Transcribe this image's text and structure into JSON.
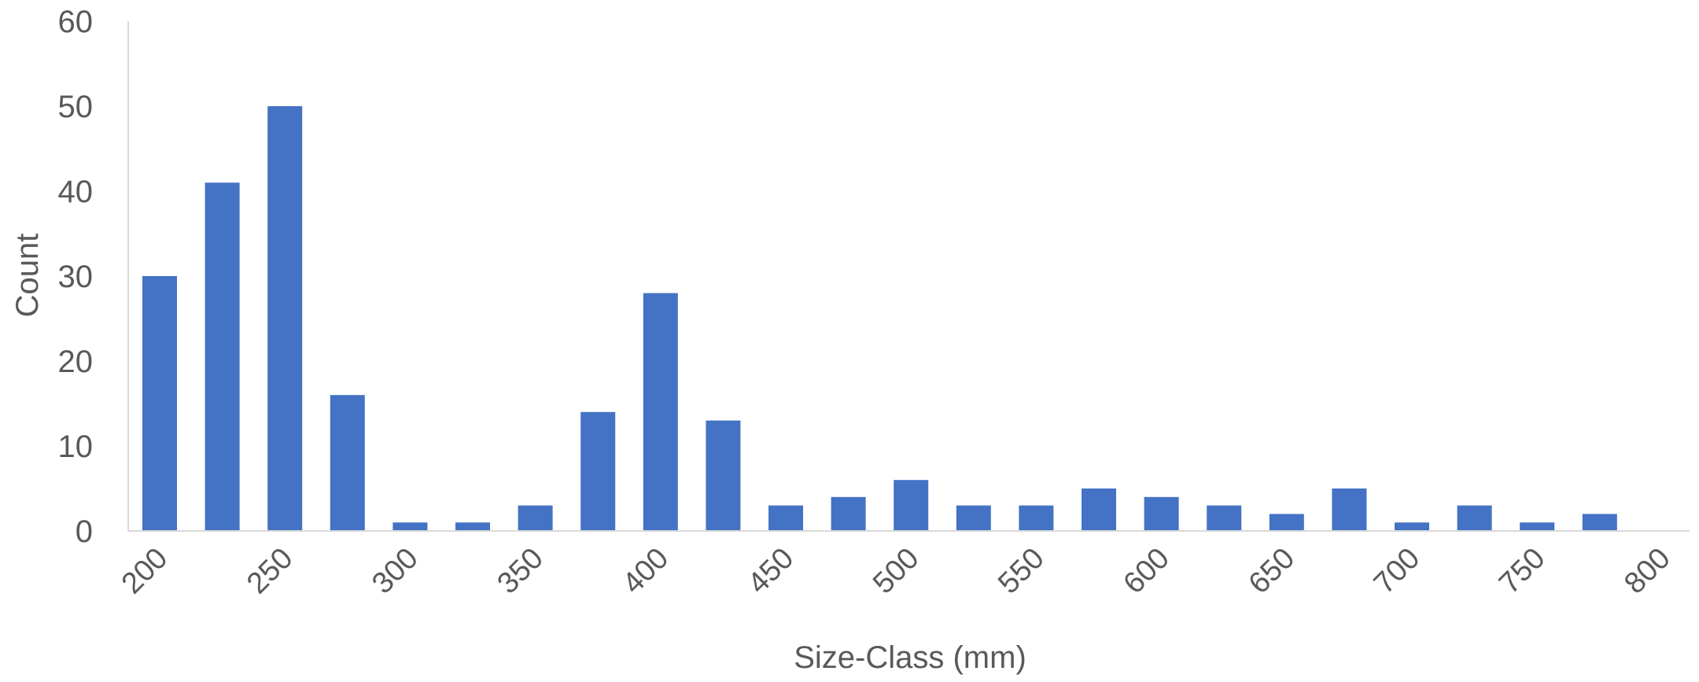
{
  "chart_data": {
    "type": "bar",
    "title": "",
    "xlabel": "Size-Class (mm)",
    "ylabel": "Count",
    "ylim": [
      0,
      60
    ],
    "y_ticks": [
      "0",
      "10",
      "20",
      "30",
      "40",
      "50",
      "60"
    ],
    "x_ticks": [
      "200",
      "250",
      "300",
      "350",
      "400",
      "450",
      "500",
      "550",
      "600",
      "650",
      "700",
      "750",
      "800"
    ],
    "x": [
      200,
      225,
      250,
      275,
      300,
      325,
      350,
      375,
      400,
      425,
      450,
      475,
      500,
      525,
      550,
      575,
      600,
      625,
      650,
      675,
      700,
      725,
      750,
      775
    ],
    "values": [
      30,
      41,
      50,
      16,
      1,
      1,
      3,
      14,
      28,
      13,
      3,
      4,
      6,
      3,
      3,
      5,
      4,
      3,
      2,
      5,
      1,
      3,
      1,
      2
    ],
    "bar_color": "#4472C4",
    "axis_color": "#D9D9D9",
    "text_color": "#595959",
    "grid": false,
    "legend": "none"
  }
}
